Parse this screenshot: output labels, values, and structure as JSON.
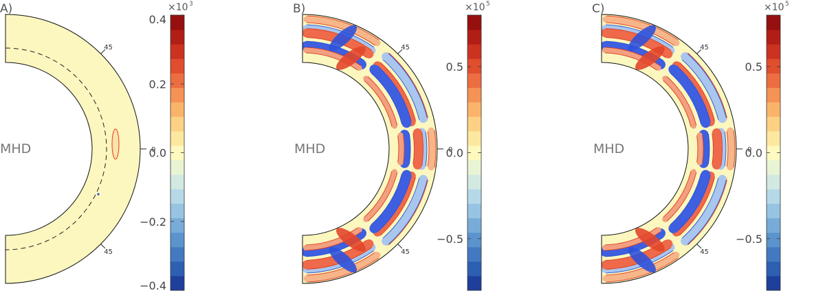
{
  "chart_data": [
    {
      "type": "heatmap",
      "panel_label": "A)",
      "annotation": "MHD",
      "latitude_labels": [
        "45",
        "0",
        "45"
      ],
      "colorbar": {
        "multiplier_base": "×10",
        "multiplier_exp": "3",
        "range": [
          -0.4,
          0.4
        ],
        "ticks": [
          "0.4",
          "0.2",
          "0.0",
          "−0.2",
          "−0.4"
        ],
        "tick_values": [
          0.4,
          0.2,
          0.0,
          -0.2,
          -0.4
        ]
      },
      "pattern": "quiet",
      "dashed_tachocline": true
    },
    {
      "type": "heatmap",
      "panel_label": "B)",
      "annotation": "MHD",
      "latitude_labels": [
        "45",
        "0",
        "45"
      ],
      "colorbar": {
        "multiplier_base": "×10",
        "multiplier_exp": "5",
        "range": [
          -0.8,
          0.8
        ],
        "ticks": [
          "0.5",
          "0.0",
          "−0.5"
        ],
        "tick_values": [
          0.5,
          0.0,
          -0.5
        ]
      },
      "pattern": "strong",
      "dashed_tachocline": false
    },
    {
      "type": "heatmap",
      "panel_label": "C)",
      "annotation": "MHD",
      "latitude_labels": [
        "45",
        "0",
        "45"
      ],
      "colorbar": {
        "multiplier_base": "×10",
        "multiplier_exp": "5",
        "range": [
          -0.8,
          0.8
        ],
        "ticks": [
          "0.5",
          "0.0",
          "−0.5"
        ],
        "tick_values": [
          0.5,
          0.0,
          -0.5
        ]
      },
      "pattern": "strong",
      "dashed_tachocline": false
    }
  ],
  "colors": {
    "background_field": "#fbf7bf",
    "positive_contour": "#e03a1c",
    "negative_contour": "#2a4fd8",
    "palette": [
      "#1e3f9c",
      "#2d5fb2",
      "#4379c0",
      "#5b93cc",
      "#78acd8",
      "#97c4e2",
      "#b6d9e8",
      "#d2e9e1",
      "#e8f4d4",
      "#fdf9bf",
      "#fde8a0",
      "#fcd184",
      "#fab46a",
      "#f59255",
      "#ec6e40",
      "#e04e2e",
      "#cc3220",
      "#b11e16",
      "#961010"
    ]
  }
}
